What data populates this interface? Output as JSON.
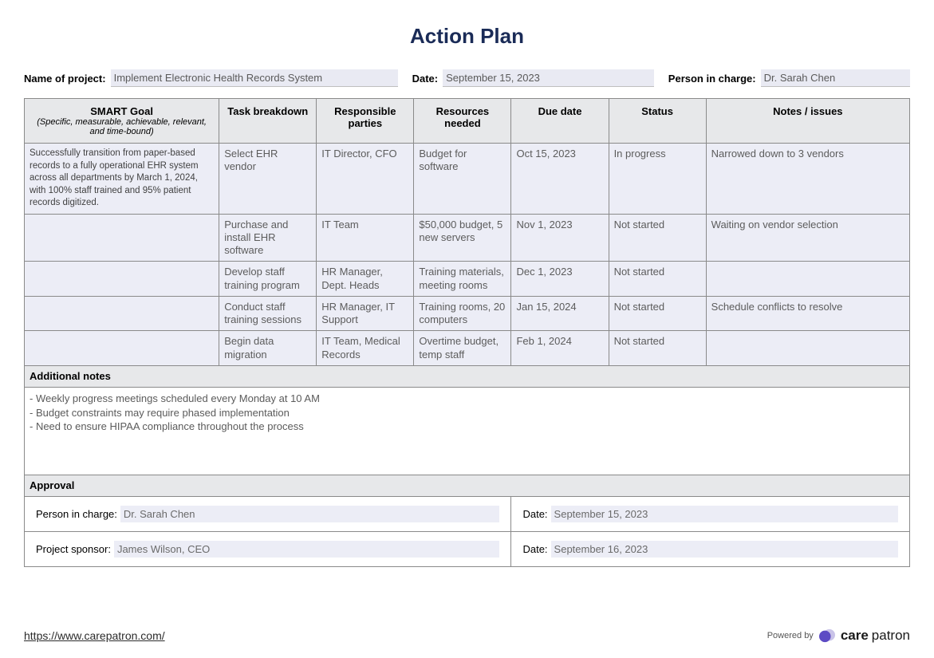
{
  "title": "Action Plan",
  "meta": {
    "project_label": "Name of project:",
    "project_value": "Implement Electronic Health Records System",
    "date_label": "Date:",
    "date_value": "September 15, 2023",
    "person_label": "Person in charge:",
    "person_value": "Dr. Sarah Chen"
  },
  "columns": {
    "smart_title": "SMART Goal",
    "smart_sub": "(Specific, measurable, achievable, relevant, and time-bound)",
    "task": "Task breakdown",
    "responsible": "Responsible parties",
    "resources": "Resources needed",
    "due": "Due date",
    "status": "Status",
    "notes": "Notes / issues"
  },
  "rows": [
    {
      "smart": "Successfully transition from paper-based records to a fully operational EHR system across all departments by March 1, 2024, with 100% staff trained and 95% patient records digitized.",
      "task": "Select EHR vendor",
      "responsible": "IT Director, CFO",
      "resources": " Budget for software",
      "due": "Oct 15, 2023",
      "status": "In progress",
      "notes": "Narrowed down to 3 vendors"
    },
    {
      "smart": "",
      "task": "Purchase and install EHR software",
      "responsible": "IT Team",
      "resources": "$50,000 budget, 5 new servers",
      "due": "Nov 1, 2023",
      "status": "Not started",
      "notes": "Waiting on vendor selection"
    },
    {
      "smart": "",
      "task": "Develop staff training program",
      "responsible": "HR Manager, Dept. Heads",
      "resources": "Training materials, meeting rooms",
      "due": "Dec 1, 2023",
      "status": "Not started",
      "notes": ""
    },
    {
      "smart": "",
      "task": "Conduct staff training sessions",
      "responsible": "HR Manager, IT Support",
      "resources": "Training rooms, 20 computers",
      "due": " Jan 15, 2024",
      "status": "Not started",
      "notes": "Schedule conflicts to resolve"
    },
    {
      "smart": "",
      "task": "Begin data migration",
      "responsible": "IT Team, Medical Records",
      "resources": "Overtime budget, temp staff",
      "due": "Feb 1, 2024",
      "status": "Not started",
      "notes": ""
    }
  ],
  "additional_notes_label": "Additional notes",
  "additional_notes": "- Weekly progress meetings scheduled every Monday at 10 AM\n- Budget constraints may require phased implementation\n- Need to ensure HIPAA compliance throughout the process",
  "approval_label": "Approval",
  "approval": {
    "pic_label": "Person in charge:",
    "pic_value": "Dr. Sarah Chen",
    "pic_date_label": "Date:",
    "pic_date_value": "September 15, 2023",
    "sponsor_label": "Project sponsor:",
    "sponsor_value": "James Wilson, CEO",
    "sponsor_date_label": "Date:",
    "sponsor_date_value": "September 16, 2023"
  },
  "footer": {
    "link": "https://www.carepatron.com/",
    "powered_by": "Powered by",
    "brand_bold": "care",
    "brand_light": "patron"
  },
  "colors": {
    "title": "#1a2b57",
    "header_bg": "#e7e8ea",
    "cell_bg": "#ecedf6",
    "border": "#8a8a8a",
    "logo_back": "#c9c3e8",
    "logo_front": "#5d4bc4"
  }
}
